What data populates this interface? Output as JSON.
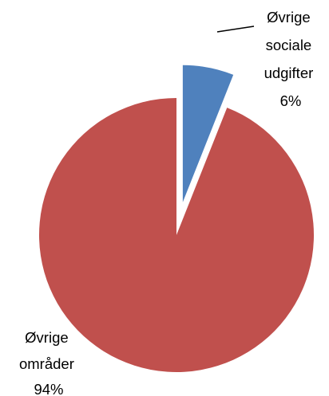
{
  "chart_data": {
    "type": "pie",
    "title": "",
    "slices": [
      {
        "label": [
          "Øvrige",
          "sociale",
          "udgifter",
          "6%"
        ],
        "value": 6,
        "color": "#4f81bd",
        "exploded": true
      },
      {
        "label": [
          "Øvrige",
          "områder",
          "94%"
        ],
        "value": 94,
        "color": "#c0504d",
        "exploded": false
      }
    ],
    "start_angle_deg": 0,
    "direction": "clockwise",
    "legend": "none",
    "data_labels": "outside",
    "leader_line_for": "Øvrige sociale udgifter"
  }
}
